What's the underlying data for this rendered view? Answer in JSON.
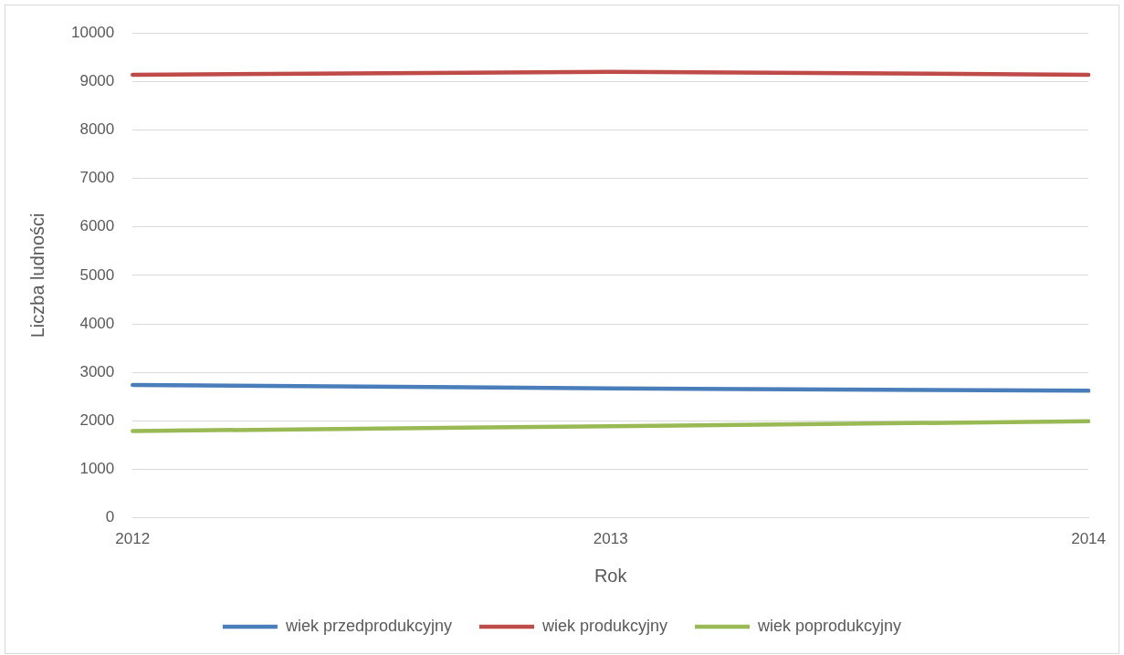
{
  "chart_data": {
    "type": "line",
    "xlabel": "Rok",
    "ylabel": "Liczba ludności",
    "categories": [
      "2012",
      "2013",
      "2014"
    ],
    "series": [
      {
        "name": "wiek przedprodukcyjny",
        "color": "#4a7ebb",
        "values": [
          2740,
          2670,
          2620
        ]
      },
      {
        "name": "wiek produkcyjny",
        "color": "#be4b48",
        "values": [
          9140,
          9200,
          9140
        ]
      },
      {
        "name": "wiek poprodukcyjny",
        "color": "#98b954",
        "values": [
          1790,
          1890,
          1990
        ]
      }
    ],
    "ylim": [
      0,
      10000
    ],
    "yticks": [
      0,
      1000,
      2000,
      3000,
      4000,
      5000,
      6000,
      7000,
      8000,
      9000,
      10000
    ],
    "grid": "y",
    "legend": "bottom",
    "marker": "none"
  }
}
